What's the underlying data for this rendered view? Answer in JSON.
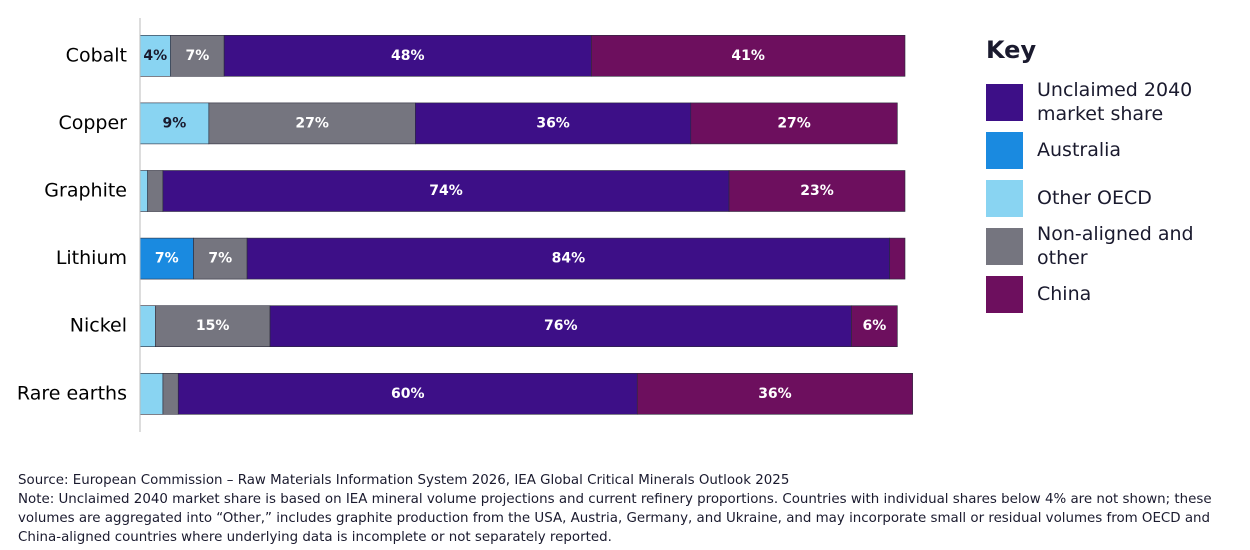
{
  "chart_data": {
    "type": "stacked-barh",
    "categories": [
      "Cobalt",
      "Copper",
      "Graphite",
      "Lithium",
      "Nickel",
      "Rare earths"
    ],
    "xlim": [
      0,
      100
    ],
    "series": [
      {
        "name": "Australia",
        "color": "#1a8ae0",
        "label_color": "#ffffff",
        "values": [
          null,
          null,
          null,
          7,
          null,
          null
        ],
        "value_labels": [
          null,
          null,
          null,
          "7%",
          null,
          null
        ]
      },
      {
        "name": "Other OECD",
        "color": "#89d4f2",
        "label_color": "#1a1a2e",
        "values": [
          4,
          9,
          1,
          null,
          2,
          3
        ],
        "value_labels": [
          "4%",
          "9%",
          null,
          null,
          null,
          null
        ]
      },
      {
        "name": "Non-aligned and other",
        "color": "#75757f",
        "label_color": "#ffffff",
        "values": [
          7,
          27,
          2,
          7,
          15,
          2
        ],
        "value_labels": [
          "7%",
          "27%",
          null,
          "7%",
          "15%",
          null
        ]
      },
      {
        "name": "Unclaimed 2040 market share",
        "color": "#3d0f87",
        "label_color": "#ffffff",
        "values": [
          48,
          36,
          74,
          84,
          76,
          60
        ],
        "value_labels": [
          "48%",
          "36%",
          "74%",
          "84%",
          "76%",
          "60%"
        ]
      },
      {
        "name": "China",
        "color": "#6d0f5e",
        "label_color": "#ffffff",
        "values": [
          41,
          27,
          23,
          2,
          6,
          36
        ],
        "value_labels": [
          "41%",
          "27%",
          "23%",
          null,
          "6%",
          "36%"
        ]
      }
    ],
    "legend_title": "Key",
    "legend_order": [
      3,
      0,
      1,
      2,
      4
    ],
    "source": "Source: European Commission – Raw Materials Information System 2026, IEA Global Critical Minerals Outlook 2025",
    "note": "Note: Unclaimed 2040 market share is based on IEA mineral volume projections and current refinery proportions. Countries with individual shares below 4% are not shown; these volumes are aggregated into “Other,” includes graphite production from the USA, Austria, Germany, and Ukraine, and may incorporate small or residual volumes from OECD and China-aligned countries where underlying data is incomplete or not separately reported."
  }
}
